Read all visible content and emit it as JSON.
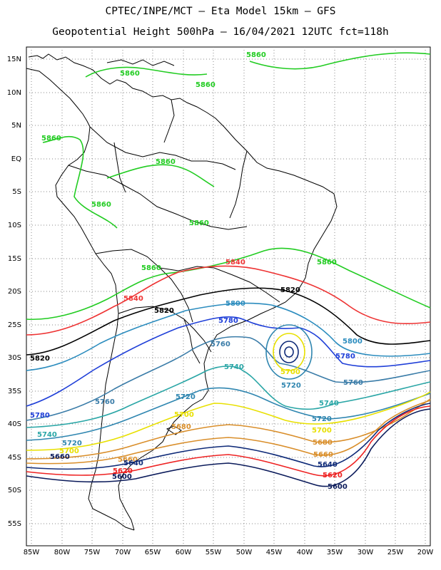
{
  "title_line1": "CPTEC/INPE/MCT –  Eta Model 15km – GFS",
  "title_line2": "Geopotential Height 500hPa – 16/04/2021 12UTC fct=118h",
  "lat_labels": [
    "15N",
    "10N",
    "5N",
    "EQ",
    "5S",
    "10S",
    "15S",
    "20S",
    "25S",
    "30S",
    "35S",
    "40S",
    "45S",
    "50S",
    "55S"
  ],
  "lon_labels": [
    "85W",
    "80W",
    "75W",
    "70W",
    "65W",
    "60W",
    "55W",
    "50W",
    "45W",
    "40W",
    "35W",
    "30W",
    "25W",
    "20W"
  ],
  "colors": {
    "c5860": "#22cc22",
    "c5840": "#ee3333",
    "c5820": "#000000",
    "c5800": "#2b8cbe",
    "c5780": "#1f3fd8",
    "c5760": "#3a7ca8",
    "c5740": "#2aa6a6",
    "c5720": "#2f86b0",
    "c5700": "#e8e000",
    "c5680": "#d98e2a",
    "c5640": "#0e2a78",
    "c5620": "#ee2222",
    "c5600": "#0a1a5a",
    "coast": "#000000",
    "grid": "#888888"
  },
  "contour_labels": {
    "v5860": "5860",
    "v5840": "5840",
    "v5820": "5820",
    "v5800": "5800",
    "v5780": "5780",
    "v5760": "5760",
    "v5740": "5740",
    "v5720": "5720",
    "v5700": "5700",
    "v5680": "5680",
    "v5660": "5660",
    "v5640": "5640",
    "v5620": "5620",
    "v5600": "5600"
  }
}
